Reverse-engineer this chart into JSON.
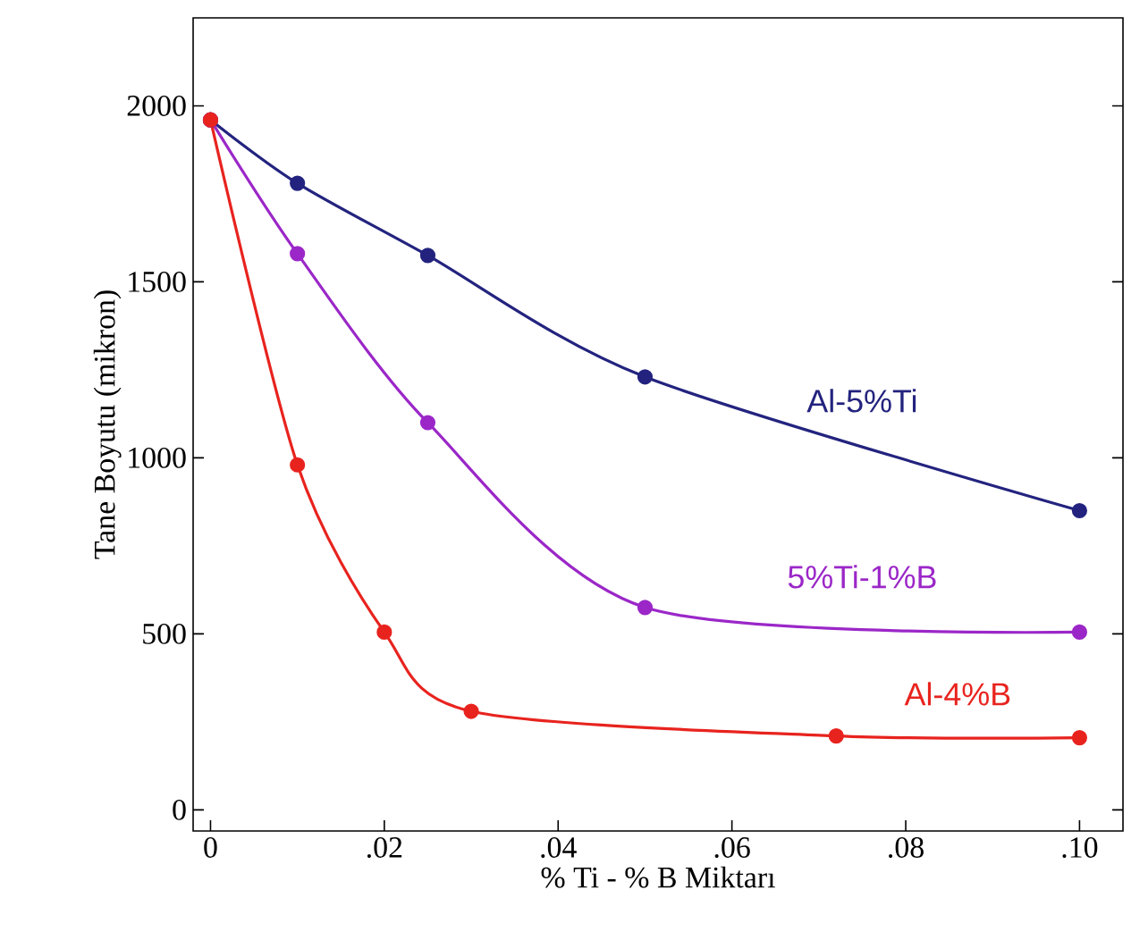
{
  "chart_data": {
    "type": "line",
    "xlabel": "% Ti - % B Miktarı",
    "ylabel": "Tane Boyutu (mikron)",
    "xlim": [
      -0.002,
      0.105
    ],
    "ylim": [
      -60,
      2250
    ],
    "xticks": [
      {
        "value": 0,
        "label": "0"
      },
      {
        "value": 0.02,
        "label": ".02"
      },
      {
        "value": 0.04,
        "label": ".04"
      },
      {
        "value": 0.06,
        "label": ".06"
      },
      {
        "value": 0.08,
        "label": ".08"
      },
      {
        "value": 0.1,
        "label": ".10"
      }
    ],
    "yticks": [
      0,
      500,
      1000,
      1500,
      2000
    ],
    "marker": "circle",
    "line_style": "solid",
    "grid": false,
    "series": [
      {
        "name": "Al-5%Ti",
        "color": "#23237f",
        "x": [
          0,
          0.01,
          0.025,
          0.05,
          0.1
        ],
        "values": [
          1960,
          1780,
          1575,
          1230,
          850
        ]
      },
      {
        "name": "5%Ti-1%B",
        "color": "#9b27c8",
        "x": [
          0,
          0.01,
          0.025,
          0.05,
          0.1
        ],
        "values": [
          1960,
          1580,
          1100,
          575,
          505
        ]
      },
      {
        "name": "Al-4%B",
        "color": "#e8231e",
        "x": [
          0,
          0.01,
          0.02,
          0.03,
          0.072,
          0.1
        ],
        "values": [
          1960,
          980,
          505,
          280,
          210,
          205
        ]
      }
    ]
  }
}
